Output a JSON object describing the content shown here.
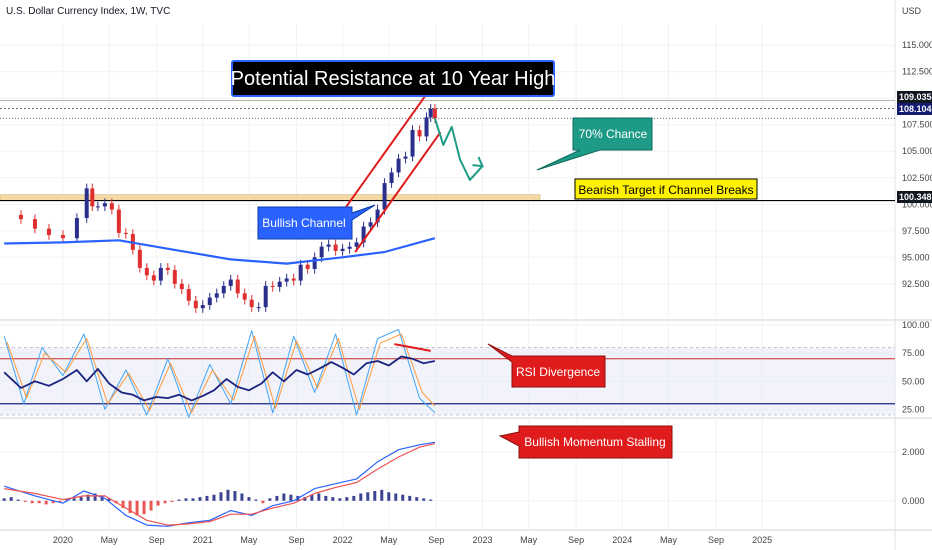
{
  "header": {
    "title": "U.S. Dollar Currency Index, 1W, TVC"
  },
  "colors": {
    "price_up": "#2a2e8c",
    "price_down": "#e02f2f",
    "channel": "#e01b1b",
    "ma_line": "#2962ff",
    "arrow": "#1e9b86",
    "rsi_line": "#1a237e",
    "stoch_k": "#42a5f5",
    "stoch_d": "#ff9a3c",
    "macd": "#2962ff",
    "signal": "#ef5350",
    "zone": "#f3d9a4",
    "callout_blue": "#2962ff",
    "callout_teal": "#1e9b86",
    "callout_red": "#e01b1b",
    "callout_yellow": "#fff200"
  },
  "annotations": {
    "resistance": "Potential Resistance at 10 Year High",
    "chance": "70% Chance",
    "target": "Bearish Target if Channel Breaks",
    "channel": "Bullish Channel",
    "rsi": "RSI Divergence",
    "momentum": "Bullish Momentum Stalling"
  },
  "badges": {
    "high": "109.035",
    "last": "108.104",
    "target": "100.348"
  },
  "chart_data": [
    {
      "type": "line",
      "title": "U.S. Dollar Currency Index, 1W, TVC",
      "ylabel": "USD",
      "ylim": [
        90.5,
        117.0
      ],
      "yticks": [
        115.0,
        112.5,
        110.0,
        107.5,
        105.0,
        102.5,
        100.0,
        97.5,
        95.0,
        92.5
      ],
      "ytick_labels": [
        "115.000",
        "112.500",
        "110.000",
        "107.500",
        "105.000",
        "102.500",
        "100.000",
        "97.500",
        "95.000",
        "92.500"
      ],
      "x_range": [
        "2019-08",
        "2025-12"
      ],
      "xticks": [
        {
          "x": 2020.0,
          "label": "2020"
        },
        {
          "x": 2020.33,
          "label": "May"
        },
        {
          "x": 2020.67,
          "label": "Sep"
        },
        {
          "x": 2021.0,
          "label": "2021"
        },
        {
          "x": 2021.33,
          "label": "May"
        },
        {
          "x": 2021.67,
          "label": "Sep"
        },
        {
          "x": 2022.0,
          "label": "2022"
        },
        {
          "x": 2022.33,
          "label": "May"
        },
        {
          "x": 2022.67,
          "label": "Sep"
        },
        {
          "x": 2023.0,
          "label": "2023"
        },
        {
          "x": 2023.33,
          "label": "May"
        },
        {
          "x": 2023.67,
          "label": "Sep"
        },
        {
          "x": 2024.0,
          "label": "2024"
        },
        {
          "x": 2024.33,
          "label": "May"
        },
        {
          "x": 2024.67,
          "label": "Sep"
        },
        {
          "x": 2025.0,
          "label": "2025"
        }
      ],
      "series": [
        {
          "role": "price",
          "x": [
            2019.58,
            2019.7,
            2019.8,
            2019.9,
            2020.0,
            2020.1,
            2020.17,
            2020.21,
            2020.25,
            2020.3,
            2020.35,
            2020.4,
            2020.45,
            2020.5,
            2020.55,
            2020.6,
            2020.65,
            2020.7,
            2020.75,
            2020.8,
            2020.85,
            2020.9,
            2020.95,
            2021.0,
            2021.05,
            2021.1,
            2021.15,
            2021.2,
            2021.25,
            2021.3,
            2021.35,
            2021.4,
            2021.45,
            2021.5,
            2021.55,
            2021.6,
            2021.65,
            2021.7,
            2021.75,
            2021.8,
            2021.85,
            2021.9,
            2021.95,
            2022.0,
            2022.05,
            2022.1,
            2022.15,
            2022.2,
            2022.25,
            2022.3,
            2022.35,
            2022.4,
            2022.45,
            2022.5,
            2022.55,
            2022.6,
            2022.63,
            2022.66
          ],
          "values": [
            99.0,
            98.6,
            97.7,
            97.1,
            96.8,
            98.7,
            101.5,
            99.8,
            99.8,
            100.1,
            99.5,
            97.3,
            97.2,
            95.7,
            94.0,
            93.3,
            92.8,
            94.0,
            93.8,
            92.5,
            92.0,
            90.9,
            90.2,
            90.5,
            91.2,
            91.6,
            92.3,
            92.9,
            91.6,
            91.0,
            90.3,
            90.3,
            92.3,
            92.2,
            92.7,
            93.0,
            92.8,
            94.3,
            93.9,
            95.0,
            96.0,
            96.2,
            95.6,
            95.8,
            96.0,
            96.4,
            97.9,
            98.3,
            99.5,
            102.0,
            103.0,
            104.3,
            104.5,
            107.0,
            106.4,
            108.2,
            109.0,
            108.1
          ]
        },
        {
          "role": "moving-average",
          "x": [
            2019.58,
            2020.0,
            2020.4,
            2020.8,
            2021.2,
            2021.6,
            2022.0,
            2022.3,
            2022.66
          ],
          "values": [
            96.3,
            96.4,
            96.6,
            95.7,
            94.8,
            94.4,
            95.0,
            95.5,
            96.8
          ]
        },
        {
          "role": "projection",
          "x": [
            2022.66,
            2022.72,
            2022.78,
            2022.84,
            2022.91,
            2023.0
          ],
          "values": [
            108.1,
            105.6,
            107.3,
            104.2,
            102.3,
            103.6
          ]
        },
        {
          "role": "channel-upper",
          "x": [
            2021.92,
            2022.59
          ],
          "values": [
            97.8,
            110.2
          ]
        },
        {
          "role": "channel-lower",
          "x": [
            2022.09,
            2022.7
          ],
          "values": [
            95.5,
            106.8
          ]
        }
      ],
      "levels": [
        109.035,
        108.104,
        100.348
      ],
      "zone": [
        100.348,
        100.9
      ]
    },
    {
      "type": "line",
      "title": "",
      "ylim": [
        20,
        100
      ],
      "yticks": [
        100,
        75,
        50,
        25
      ],
      "ytick_labels": [
        "100.00",
        "75.00",
        "50.00",
        "25.00"
      ],
      "levels": [
        70,
        30
      ],
      "series": [
        {
          "role": "rsi",
          "x": [
            2019.58,
            2019.7,
            2019.8,
            2019.9,
            2020.0,
            2020.1,
            2020.17,
            2020.25,
            2020.33,
            2020.42,
            2020.5,
            2020.58,
            2020.67,
            2020.75,
            2020.83,
            2020.92,
            2021.0,
            2021.08,
            2021.17,
            2021.25,
            2021.33,
            2021.42,
            2021.5,
            2021.58,
            2021.67,
            2021.75,
            2021.83,
            2021.92,
            2022.0,
            2022.08,
            2022.17,
            2022.25,
            2022.33,
            2022.42,
            2022.5,
            2022.58,
            2022.66
          ],
          "values": [
            58,
            44,
            50,
            46,
            52,
            60,
            50,
            61,
            48,
            40,
            38,
            33,
            36,
            35,
            38,
            33,
            37,
            42,
            52,
            45,
            42,
            48,
            58,
            50,
            60,
            56,
            61,
            67,
            62,
            56,
            66,
            68,
            64,
            72,
            70,
            66,
            68
          ]
        },
        {
          "role": "stoch-k",
          "x": [
            2019.58,
            2019.72,
            2019.85,
            2020.0,
            2020.15,
            2020.3,
            2020.45,
            2020.6,
            2020.75,
            2020.9,
            2021.05,
            2021.2,
            2021.35,
            2021.5,
            2021.65,
            2021.8,
            2021.95,
            2022.1,
            2022.25,
            2022.4,
            2022.55,
            2022.66
          ],
          "values": [
            90,
            30,
            80,
            55,
            92,
            25,
            60,
            20,
            70,
            18,
            65,
            30,
            95,
            22,
            90,
            40,
            92,
            20,
            88,
            96,
            35,
            22
          ]
        },
        {
          "role": "stoch-d",
          "x": [
            2019.6,
            2019.74,
            2019.87,
            2020.02,
            2020.17,
            2020.32,
            2020.47,
            2020.62,
            2020.77,
            2020.92,
            2021.07,
            2021.22,
            2021.37,
            2021.52,
            2021.67,
            2021.82,
            2021.97,
            2022.12,
            2022.27,
            2022.42,
            2022.57,
            2022.66
          ],
          "values": [
            85,
            35,
            75,
            58,
            88,
            30,
            57,
            24,
            66,
            22,
            60,
            33,
            90,
            26,
            86,
            44,
            88,
            25,
            84,
            92,
            40,
            28
          ]
        },
        {
          "role": "divergence",
          "x": [
            2022.37,
            2022.63
          ],
          "values": [
            83,
            77
          ]
        }
      ]
    },
    {
      "type": "line",
      "title": "",
      "ylim": [
        -1.2,
        3.4
      ],
      "yticks": [
        2.0,
        0.0
      ],
      "ytick_labels": [
        "2.000",
        "0.000"
      ],
      "series": [
        {
          "role": "macd",
          "x": [
            2019.58,
            2019.8,
            2020.0,
            2020.15,
            2020.3,
            2020.45,
            2020.6,
            2020.75,
            2020.9,
            2021.05,
            2021.2,
            2021.35,
            2021.5,
            2021.65,
            2021.8,
            2021.95,
            2022.1,
            2022.25,
            2022.4,
            2022.55,
            2022.66
          ],
          "values": [
            0.6,
            0.2,
            -0.1,
            0.4,
            0.1,
            -0.6,
            -1.0,
            -1.05,
            -0.9,
            -0.8,
            -0.4,
            -0.6,
            -0.2,
            0.0,
            0.5,
            0.7,
            0.9,
            1.6,
            2.1,
            2.3,
            2.4
          ]
        },
        {
          "role": "signal",
          "x": [
            2019.58,
            2019.8,
            2020.0,
            2020.15,
            2020.3,
            2020.45,
            2020.6,
            2020.75,
            2020.9,
            2021.05,
            2021.2,
            2021.35,
            2021.5,
            2021.65,
            2021.8,
            2021.95,
            2022.1,
            2022.25,
            2022.4,
            2022.55,
            2022.66
          ],
          "values": [
            0.5,
            0.3,
            0.05,
            0.2,
            0.2,
            -0.3,
            -0.8,
            -1.0,
            -0.95,
            -0.85,
            -0.55,
            -0.55,
            -0.3,
            -0.1,
            0.3,
            0.55,
            0.75,
            1.3,
            1.8,
            2.2,
            2.35
          ]
        },
        {
          "role": "histogram",
          "x": [
            2019.58,
            2019.63,
            2019.68,
            2019.73,
            2019.78,
            2019.83,
            2019.88,
            2019.93,
            2019.98,
            2020.03,
            2020.08,
            2020.13,
            2020.18,
            2020.23,
            2020.28,
            2020.33,
            2020.38,
            2020.43,
            2020.48,
            2020.53,
            2020.58,
            2020.63,
            2020.68,
            2020.73,
            2020.78,
            2020.83,
            2020.88,
            2020.93,
            2020.98,
            2021.03,
            2021.08,
            2021.13,
            2021.18,
            2021.23,
            2021.28,
            2021.33,
            2021.38,
            2021.43,
            2021.48,
            2021.53,
            2021.58,
            2021.63,
            2021.68,
            2021.73,
            2021.78,
            2021.83,
            2021.88,
            2021.93,
            2021.98,
            2022.03,
            2022.08,
            2022.13,
            2022.18,
            2022.23,
            2022.28,
            2022.33,
            2022.38,
            2022.43,
            2022.48,
            2022.53,
            2022.58,
            2022.63
          ],
          "values": [
            0.1,
            0.15,
            0.05,
            -0.05,
            -0.1,
            -0.1,
            -0.15,
            -0.1,
            -0.05,
            0.05,
            0.1,
            0.15,
            0.25,
            0.3,
            0.2,
            0.1,
            -0.1,
            -0.3,
            -0.5,
            -0.6,
            -0.55,
            -0.4,
            -0.2,
            -0.1,
            -0.05,
            0.05,
            0.1,
            0.1,
            0.15,
            0.2,
            0.25,
            0.35,
            0.45,
            0.4,
            0.3,
            0.15,
            0.05,
            -0.1,
            0.1,
            0.2,
            0.3,
            0.25,
            0.2,
            0.15,
            0.25,
            0.3,
            0.2,
            0.15,
            0.1,
            0.15,
            0.2,
            0.3,
            0.35,
            0.4,
            0.45,
            0.35,
            0.3,
            0.25,
            0.2,
            0.15,
            0.1,
            0.05
          ]
        }
      ]
    }
  ]
}
